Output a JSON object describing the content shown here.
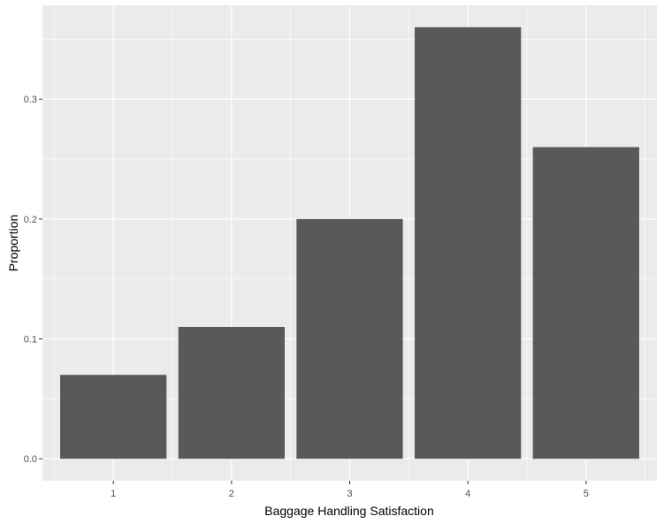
{
  "chart_data": {
    "type": "bar",
    "categories": [
      "1",
      "2",
      "3",
      "4",
      "5"
    ],
    "values": [
      0.07,
      0.11,
      0.2,
      0.36,
      0.26
    ],
    "title": "",
    "xlabel": "Baggage Handling Satisfaction",
    "ylabel": "Proportion",
    "ylim": [
      -0.0183,
      0.3783
    ],
    "yticks": [
      0.0,
      0.1,
      0.2,
      0.3
    ],
    "ytick_labels": [
      "0.0",
      "0.1",
      "0.2",
      "0.3"
    ],
    "grid": true,
    "colors": {
      "panel_background": "#ebebeb",
      "grid_line": "#ffffff",
      "bar_fill": "#595959",
      "tick_mark": "#333333"
    }
  }
}
